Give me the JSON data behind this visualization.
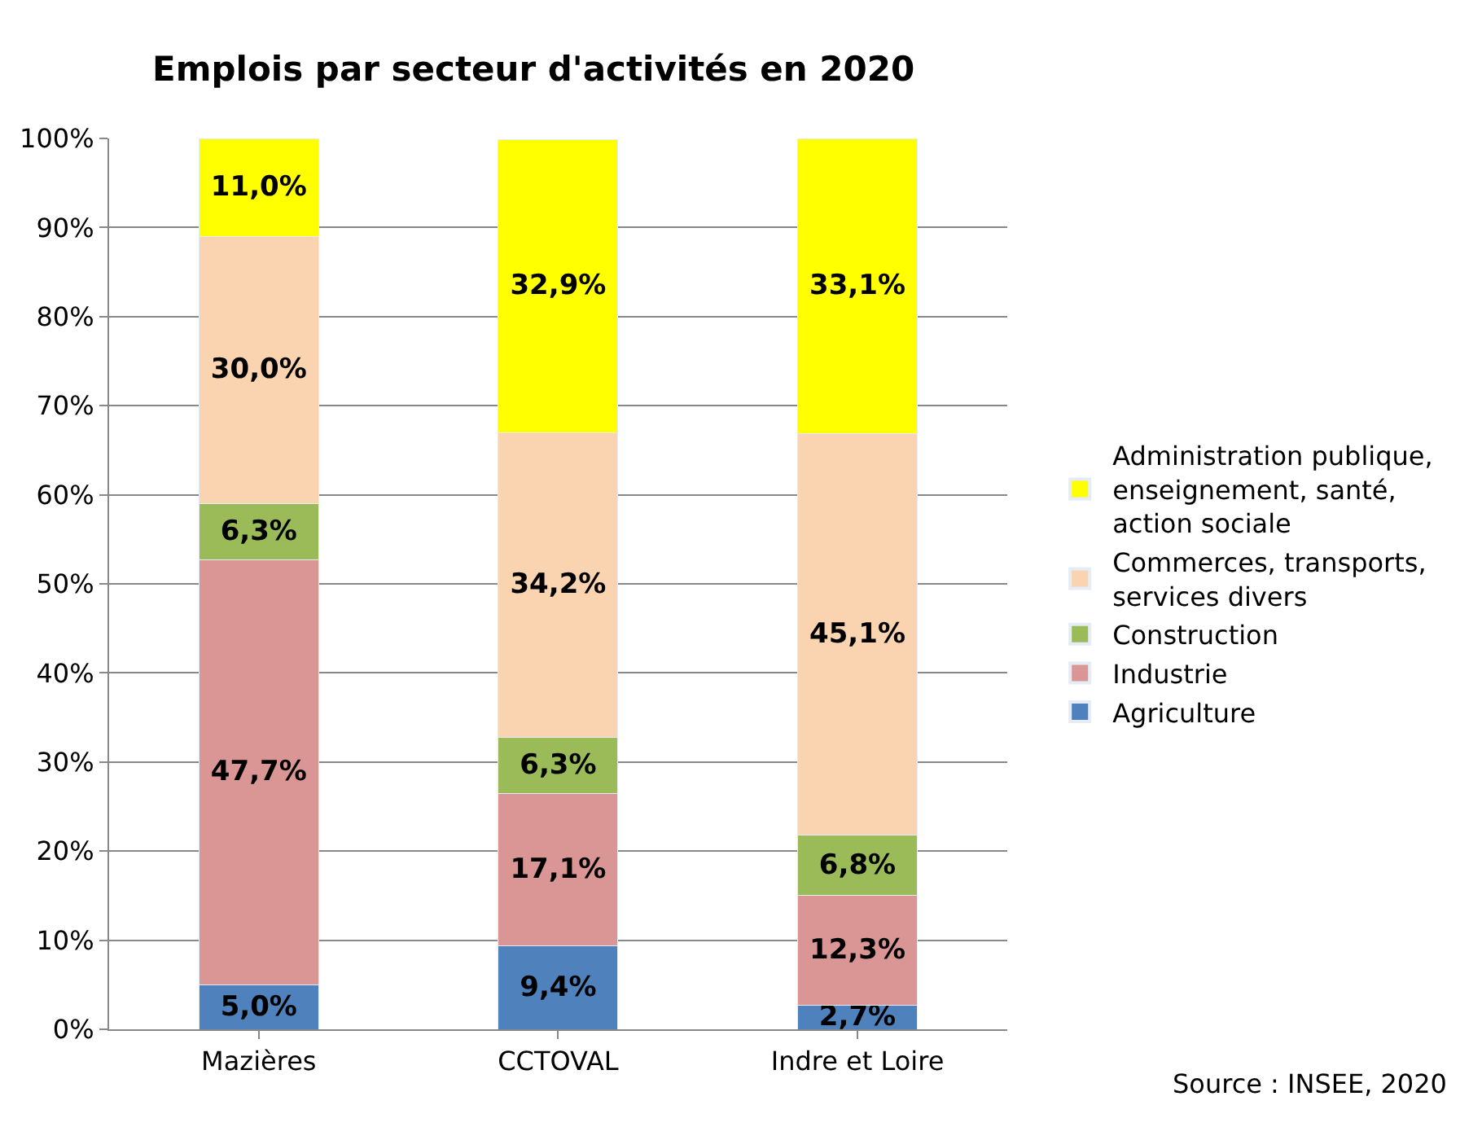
{
  "chart_data": {
    "type": "bar",
    "stacked": true,
    "title": "Emplois par secteur d'activités en 2020",
    "categories": [
      "Mazières",
      "CCTOVAL",
      "Indre et Loire"
    ],
    "series": [
      {
        "name": "Agriculture",
        "color": "#4f81bd",
        "values": [
          5.0,
          9.4,
          2.7
        ],
        "value_labels": [
          "5,0%",
          "9,4%",
          "2,7%"
        ]
      },
      {
        "name": "Industrie",
        "color": "#d99694",
        "values": [
          47.7,
          17.1,
          12.3
        ],
        "value_labels": [
          "47,7%",
          "17,1%",
          "12,3%"
        ]
      },
      {
        "name": "Construction",
        "color": "#9bbb59",
        "values": [
          6.3,
          6.3,
          6.8
        ],
        "value_labels": [
          "6,3%",
          "6,3%",
          "6,8%"
        ]
      },
      {
        "name": "Commerces, transports, services divers",
        "color": "#fad3b0",
        "values": [
          30.0,
          34.2,
          45.1
        ],
        "value_labels": [
          "30,0%",
          "34,2%",
          "45,1%"
        ]
      },
      {
        "name": "Administration publique, enseignement, santé, action sociale",
        "color": "#ffff00",
        "values": [
          11.0,
          32.9,
          33.1
        ],
        "value_labels": [
          "11,0%",
          "32,9%",
          "33,1%"
        ]
      }
    ],
    "ylim": [
      0,
      100
    ],
    "yticks": [
      {
        "value": 0,
        "label": "0%"
      },
      {
        "value": 10,
        "label": "10%"
      },
      {
        "value": 20,
        "label": "20%"
      },
      {
        "value": 30,
        "label": "30%"
      },
      {
        "value": 40,
        "label": "40%"
      },
      {
        "value": 50,
        "label": "50%"
      },
      {
        "value": 60,
        "label": "60%"
      },
      {
        "value": 70,
        "label": "70%"
      },
      {
        "value": 80,
        "label": "80%"
      },
      {
        "value": 90,
        "label": "90%"
      },
      {
        "value": 100,
        "label": "100%"
      }
    ],
    "grid": "y",
    "legend": "right",
    "annotations": [
      "Source : INSEE, 2020"
    ]
  }
}
